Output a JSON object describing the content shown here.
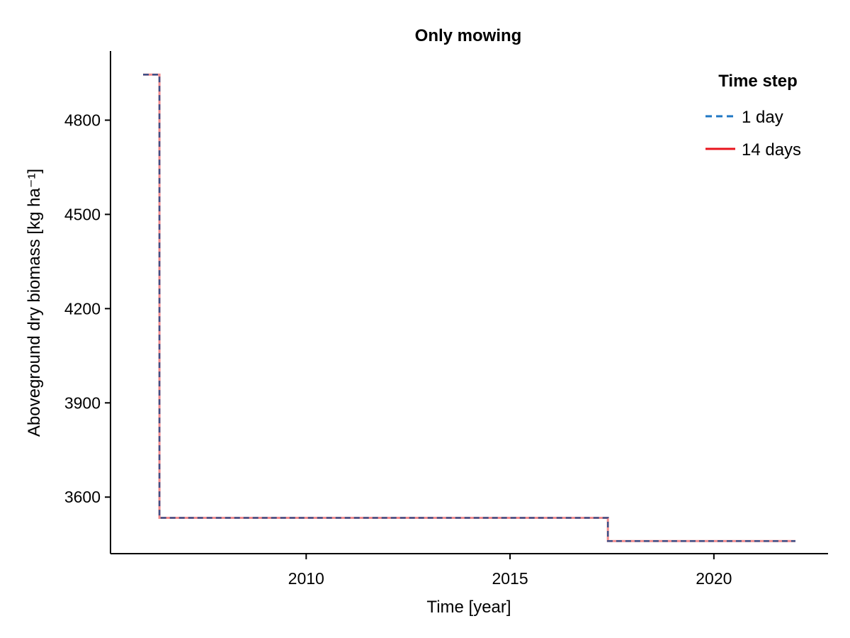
{
  "chart_data": {
    "type": "line",
    "title": "Only mowing",
    "xlabel": "Time [year]",
    "ylabel": "Aboveground dry biomass [kg ha⁻¹]",
    "xlim": [
      2005.2,
      2022.8
    ],
    "ylim": [
      3420,
      5020
    ],
    "xticks": [
      2010,
      2015,
      2020
    ],
    "yticks": [
      3600,
      3900,
      4200,
      4500,
      4800
    ],
    "grid": false,
    "legend": {
      "title": "Time step",
      "placement": "top-right",
      "entries": [
        {
          "label": "1 day",
          "style": "dashed",
          "color": "#1f77c4"
        },
        {
          "label": "14 days",
          "style": "solid",
          "color": "#e8141c"
        }
      ]
    },
    "series": [
      {
        "name": "14 days",
        "color": "#f08a8c",
        "style": "solid",
        "step": true,
        "x": [
          2006.0,
          2006.4,
          2006.4,
          2017.4,
          2017.4,
          2022.0
        ],
        "y": [
          4945,
          4945,
          3534,
          3534,
          3460,
          3460
        ]
      },
      {
        "name": "1 day",
        "color": "#3d4f86",
        "style": "dashed",
        "step": true,
        "x": [
          2006.0,
          2006.4,
          2006.4,
          2017.4,
          2017.4,
          2022.0
        ],
        "y": [
          4945,
          4945,
          3534,
          3534,
          3460,
          3460
        ]
      }
    ]
  }
}
